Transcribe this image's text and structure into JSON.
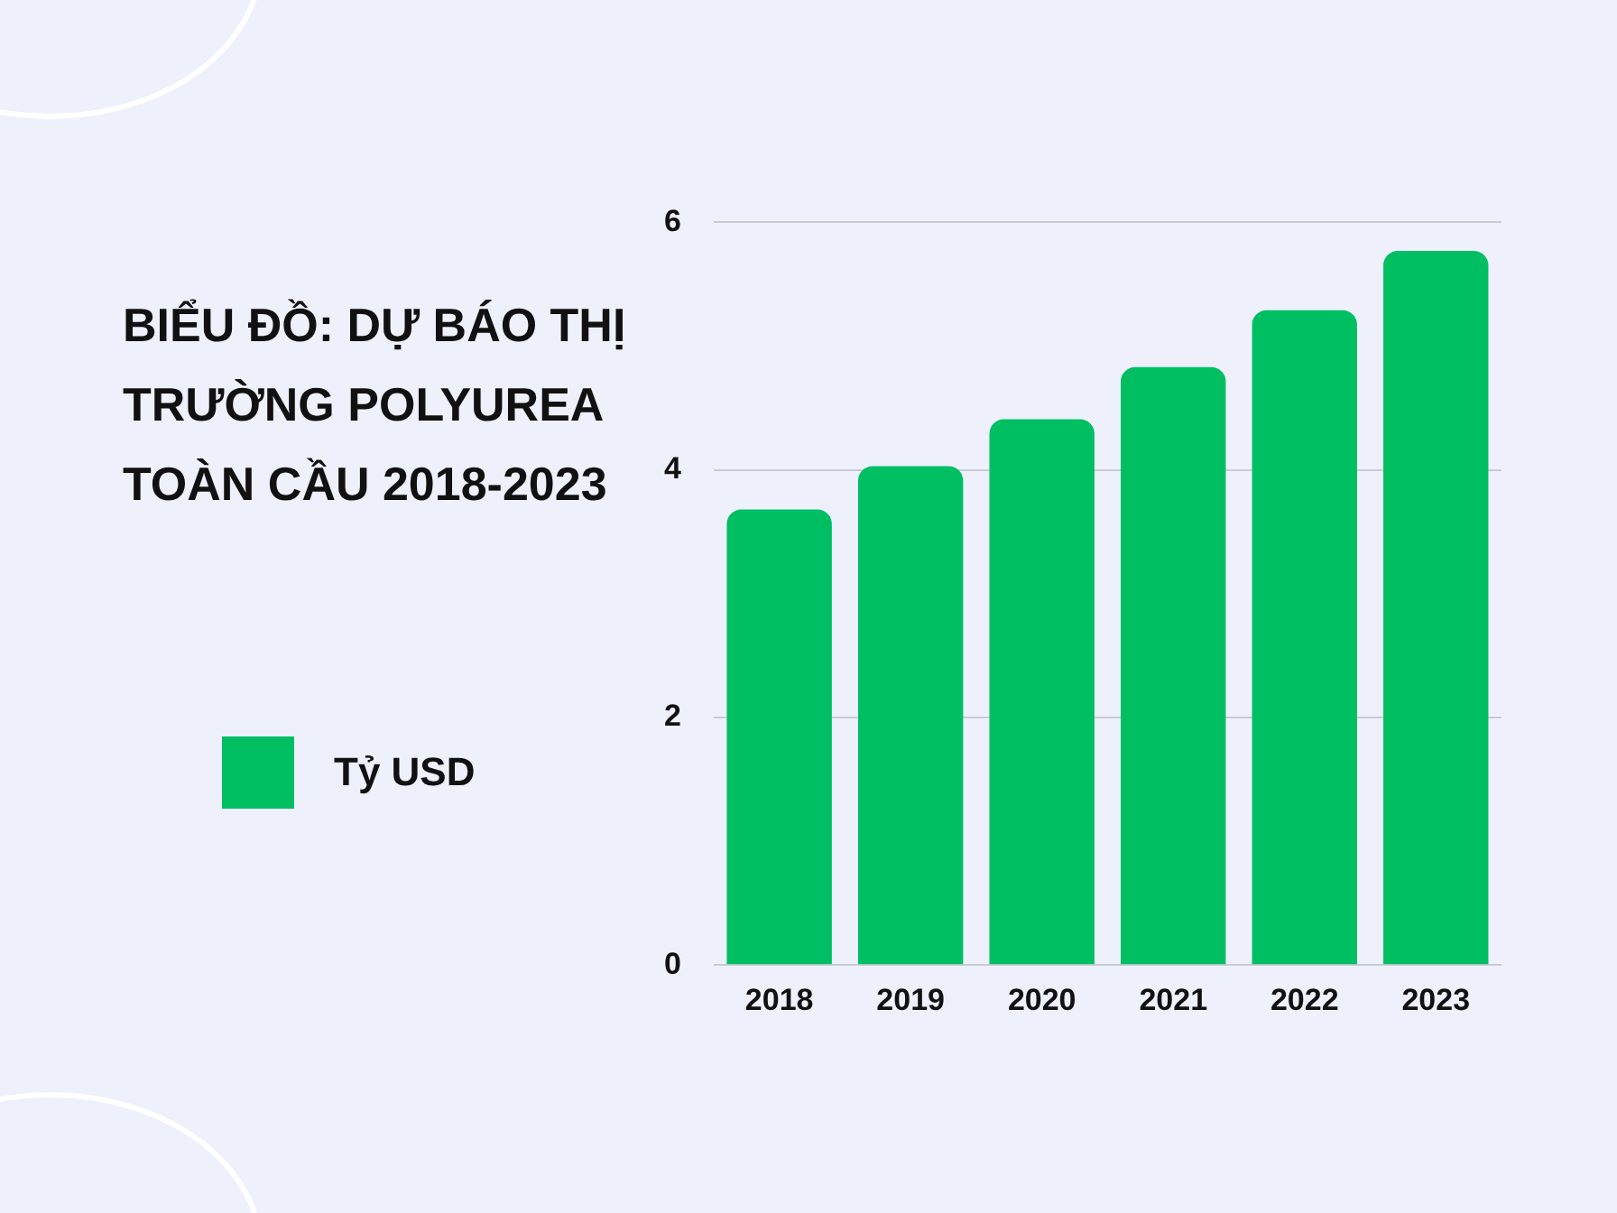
{
  "chart_data": {
    "type": "bar",
    "title": "BIỂU ĐỒ: DỰ BÁO THỊ TRƯỜNG POLYUREA TOÀN CẦU 2018-2023",
    "categories": [
      "2018",
      "2019",
      "2020",
      "2021",
      "2022",
      "2023"
    ],
    "series": [
      {
        "name": "Tỷ USD",
        "color": "#00bf63",
        "values": [
          3.68,
          4.03,
          4.41,
          4.83,
          5.29,
          5.77
        ]
      }
    ],
    "ylim": [
      0,
      6
    ],
    "yticks": [
      0,
      2,
      4,
      6
    ],
    "grid": "y",
    "legend": "left"
  }
}
